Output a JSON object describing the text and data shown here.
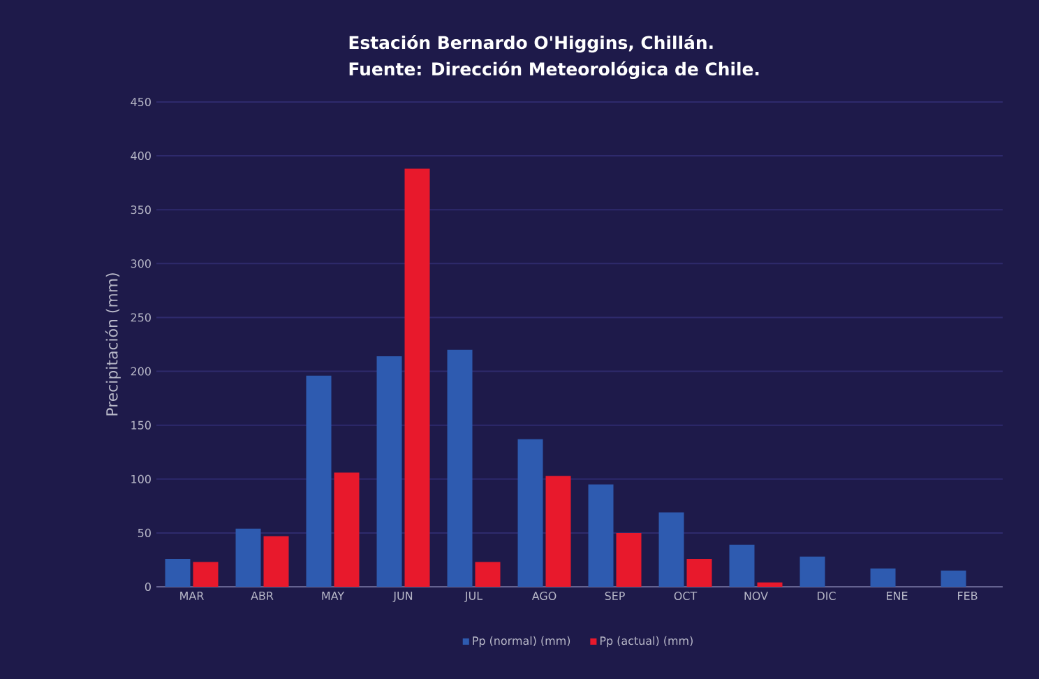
{
  "chart_data": {
    "type": "bar",
    "title": "Estación Bernardo O'Higgins, Chillán.",
    "subtitle": "Fuente: Dirección Meteorológica de Chile.",
    "ylabel": "Precipitación (mm)",
    "categories": [
      "MAR",
      "ABR",
      "MAY",
      "JUN",
      "JUL",
      "AGO",
      "SEP",
      "OCT",
      "NOV",
      "DIC",
      "ENE",
      "FEB"
    ],
    "series": [
      {
        "name": "Pp (normal) (mm)",
        "color": "#2e5bb0",
        "values": [
          26,
          54,
          196,
          214,
          220,
          137,
          95,
          69,
          39,
          28,
          17,
          15
        ]
      },
      {
        "name": "Pp (actual) (mm)",
        "color": "#e8192c",
        "values": [
          23,
          47,
          106,
          388,
          23,
          103,
          50,
          26,
          4,
          null,
          null,
          null
        ]
      }
    ],
    "ylim": [
      0,
      450
    ],
    "yticks": [
      0,
      50,
      100,
      150,
      200,
      250,
      300,
      350,
      400,
      450
    ],
    "grid": "y",
    "legend": "bottom"
  }
}
